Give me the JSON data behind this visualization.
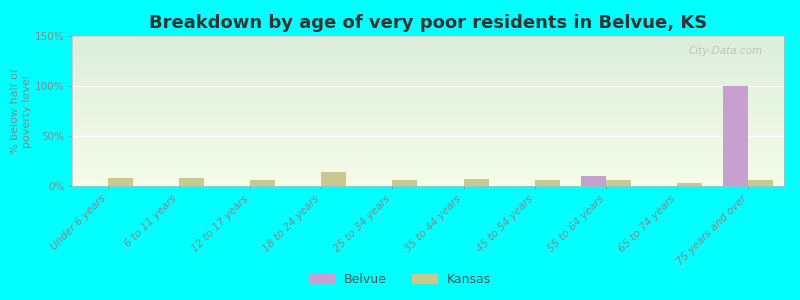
{
  "title": "Breakdown by age of very poor residents in Belvue, KS",
  "ylabel": "% below half of\npoverty level",
  "categories": [
    "Under 6 years",
    "6 to 11 years",
    "12 to 17 years",
    "18 to 24 years",
    "25 to 34 years",
    "35 to 44 years",
    "45 to 54 years",
    "55 to 64 years",
    "65 to 74 years",
    "75 years and over"
  ],
  "belvue_values": [
    0,
    0,
    0,
    0,
    0,
    0,
    0,
    10,
    0,
    100
  ],
  "kansas_values": [
    8,
    8,
    6,
    14,
    6,
    7,
    6,
    6,
    3,
    6
  ],
  "belvue_color": "#c8a0d0",
  "kansas_color": "#c8c890",
  "background_color": "#00ffff",
  "gradient_top": "#ddeedd",
  "gradient_bottom": "#f5fce8",
  "ylim": [
    0,
    150
  ],
  "yticks": [
    0,
    50,
    100,
    150
  ],
  "ytick_labels": [
    "0%",
    "50%",
    "100%",
    "150%"
  ],
  "bar_width": 0.35,
  "title_fontsize": 13,
  "axis_label_fontsize": 8,
  "tick_fontsize": 7.5,
  "legend_fontsize": 9,
  "watermark": "City-Data.com"
}
